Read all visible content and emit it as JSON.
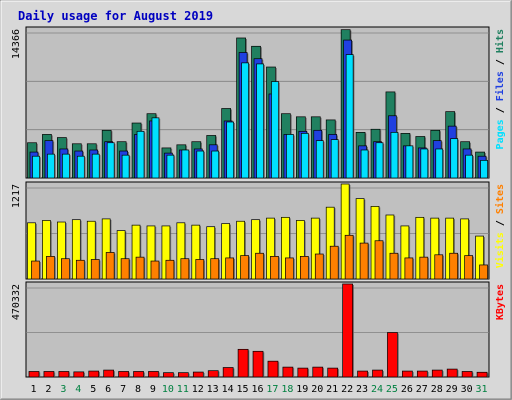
{
  "chart_data": {
    "title": "Daily usage for August 2019",
    "type": "bar",
    "days": [
      "1",
      "2",
      "3",
      "4",
      "5",
      "6",
      "7",
      "8",
      "9",
      "10",
      "11",
      "12",
      "13",
      "14",
      "15",
      "16",
      "17",
      "18",
      "19",
      "20",
      "21",
      "22",
      "23",
      "24",
      "25",
      "26",
      "27",
      "28",
      "29",
      "30",
      "31"
    ],
    "weekend_days": [
      "3",
      "4",
      "10",
      "11",
      "17",
      "18",
      "24",
      "25",
      "31"
    ],
    "colors": {
      "title": "#0000c0",
      "hits": "#208060",
      "files": "#2040e0",
      "pages": "#00e0ff",
      "visits": "#ffff00",
      "sites": "#ff8000",
      "kbytes": "#ff0000",
      "weekday_label": "#000000",
      "weekend_label": "#008040",
      "plot_bg": "#c0c0c0",
      "page_bg": "#d8d8d8"
    },
    "panels": [
      {
        "id": "hits-files-pages",
        "max_label": "14366",
        "ylim": [
          0,
          14366
        ],
        "legend": [
          {
            "name": "Hits",
            "color": "#208060"
          },
          {
            "name": "Files",
            "color": "#2040e0"
          },
          {
            "name": "Pages",
            "color": "#00e0ff"
          }
        ],
        "series": [
          {
            "name": "Hits",
            "values": [
              3400,
              4200,
              3900,
              3300,
              3300,
              4600,
              3500,
              5300,
              6200,
              2900,
              3200,
              3500,
              4100,
              6700,
              13500,
              12700,
              10700,
              6200,
              5900,
              5900,
              5600,
              14300,
              4400,
              4700,
              8300,
              4300,
              4000,
              4600,
              6400,
              3500,
              2500
            ]
          },
          {
            "name": "Files",
            "values": [
              2500,
              3600,
              2800,
              2600,
              2700,
              3500,
              2600,
              4200,
              5500,
              2400,
              2700,
              2800,
              3200,
              5500,
              12100,
              11500,
              8100,
              4200,
              4500,
              4600,
              4200,
              13300,
              3100,
              3500,
              6000,
              3100,
              2900,
              3600,
              5000,
              2800,
              2100
            ]
          },
          {
            "name": "Pages",
            "values": [
              2100,
              2300,
              2300,
              2100,
              2300,
              3400,
              2200,
              4500,
              5800,
              2200,
              2700,
              2600,
              2600,
              5400,
              11100,
              11000,
              9300,
              4200,
              4300,
              3600,
              3700,
              11900,
              2700,
              3400,
              4400,
              3100,
              2800,
              2800,
              3800,
              2200,
              1700
            ]
          }
        ]
      },
      {
        "id": "visits-sites",
        "max_label": "1217",
        "ylim": [
          0,
          1217
        ],
        "legend": [
          {
            "name": "Sites",
            "color": "#ff8000"
          },
          {
            "name": "Visits",
            "color": "#ffff00"
          }
        ],
        "series": [
          {
            "name": "Visits",
            "values": [
              720,
              750,
              730,
              760,
              740,
              770,
              620,
              690,
              680,
              680,
              720,
              690,
              670,
              710,
              740,
              760,
              780,
              790,
              750,
              780,
              920,
              1217,
              1030,
              930,
              820,
              680,
              790,
              780,
              780,
              770,
              550
            ]
          },
          {
            "name": "Sites",
            "values": [
              230,
              290,
              260,
              240,
              250,
              340,
              260,
              280,
              230,
              240,
              260,
              250,
              260,
              270,
              300,
              330,
              290,
              270,
              290,
              320,
              420,
              560,
              460,
              490,
              330,
              270,
              280,
              310,
              330,
              300,
              180
            ]
          }
        ]
      },
      {
        "id": "kbytes",
        "max_label": "470332",
        "ylim": [
          0,
          470332
        ],
        "legend": [
          {
            "name": "KBytes",
            "color": "#ff0000"
          }
        ],
        "series": [
          {
            "name": "KBytes",
            "values": [
              28000,
              28000,
              28000,
              26000,
              30000,
              35000,
              28000,
              28000,
              28000,
              22000,
              22000,
              25000,
              32000,
              48000,
              140000,
              130000,
              80000,
              50000,
              45000,
              50000,
              45000,
              470332,
              30000,
              35000,
              225000,
              30000,
              30000,
              35000,
              40000,
              28000,
              24000
            ]
          }
        ]
      }
    ]
  }
}
